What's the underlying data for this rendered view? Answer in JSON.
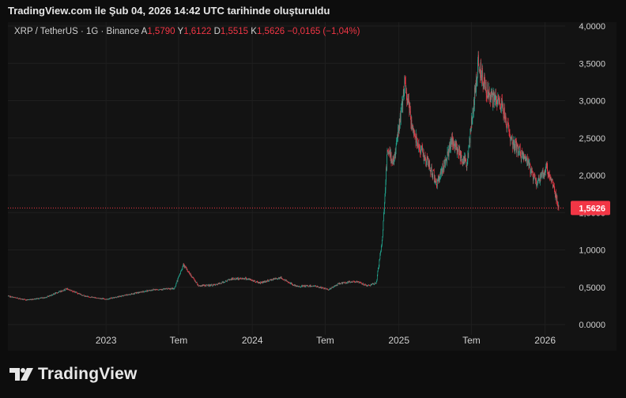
{
  "header": {
    "caption": "TradingView.com ile Şub 04, 2026 14:42 UTC tarihinde oluşturuldu"
  },
  "legend": {
    "symbol": "XRP / TetherUS · 1G · Binance",
    "open_key": "A",
    "open": "1,5790",
    "high_key": "Y",
    "high": "1,6122",
    "low_key": "D",
    "low": "1,5515",
    "close_key": "K",
    "close": "1,5626",
    "change": "−0,0165 (−1,04%)"
  },
  "brand": {
    "name": "TradingView"
  },
  "colors": {
    "up": "#22ab94",
    "down": "#f23645",
    "background": "#131313",
    "last_price": "#f23645"
  },
  "chart_data": {
    "type": "line",
    "title": "",
    "style": "candlestick",
    "ylim": [
      0,
      4.0
    ],
    "y_ticks": [
      "4,0000",
      "3,5000",
      "3,0000",
      "2,5000",
      "2,0000",
      "1,5000",
      "1,0000",
      "0,5000",
      "0.0000"
    ],
    "y_tick_values": [
      4.0,
      3.5,
      3.0,
      2.5,
      2.0,
      1.5,
      1.0,
      0.5,
      0.0
    ],
    "x_ticks": [
      "2023",
      "Tem",
      "2024",
      "Tem",
      "2025",
      "Tem",
      "2026"
    ],
    "x_tick_values": [
      "2023-01-01",
      "2023-07-01",
      "2024-01-01",
      "2024-07-01",
      "2025-01-01",
      "2025-07-01",
      "2026-01-01"
    ],
    "xlim": [
      "2022-05-01",
      "2026-02-20"
    ],
    "last_price": 1.5626,
    "last_price_label": "1,5626",
    "grid": true,
    "series": [
      {
        "x": [
          "2022-05-01",
          "2022-06-15",
          "2022-08-01",
          "2022-09-25",
          "2022-11-10",
          "2023-01-01",
          "2023-03-15",
          "2023-05-01",
          "2023-06-20",
          "2023-07-13",
          "2023-08-20",
          "2023-10-01",
          "2023-11-10",
          "2023-12-15",
          "2024-01-20",
          "2024-03-11",
          "2024-04-20",
          "2024-06-01",
          "2024-07-10",
          "2024-08-05",
          "2024-09-15",
          "2024-10-15",
          "2024-11-05",
          "2024-11-20",
          "2024-12-03",
          "2024-12-20",
          "2025-01-16",
          "2025-02-05",
          "2025-03-01",
          "2025-04-07",
          "2025-05-14",
          "2025-06-20",
          "2025-07-18",
          "2025-08-15",
          "2025-09-15",
          "2025-10-10",
          "2025-11-15",
          "2025-12-10",
          "2026-01-06",
          "2026-01-25",
          "2026-02-04"
        ],
        "close": [
          0.38,
          0.33,
          0.36,
          0.48,
          0.38,
          0.34,
          0.42,
          0.47,
          0.48,
          0.8,
          0.52,
          0.53,
          0.61,
          0.62,
          0.56,
          0.63,
          0.51,
          0.52,
          0.47,
          0.55,
          0.58,
          0.52,
          0.55,
          1.1,
          2.3,
          2.2,
          3.2,
          2.6,
          2.3,
          1.9,
          2.45,
          2.15,
          3.5,
          3.05,
          2.95,
          2.45,
          2.2,
          1.9,
          2.1,
          1.8,
          1.5626
        ]
      }
    ]
  }
}
